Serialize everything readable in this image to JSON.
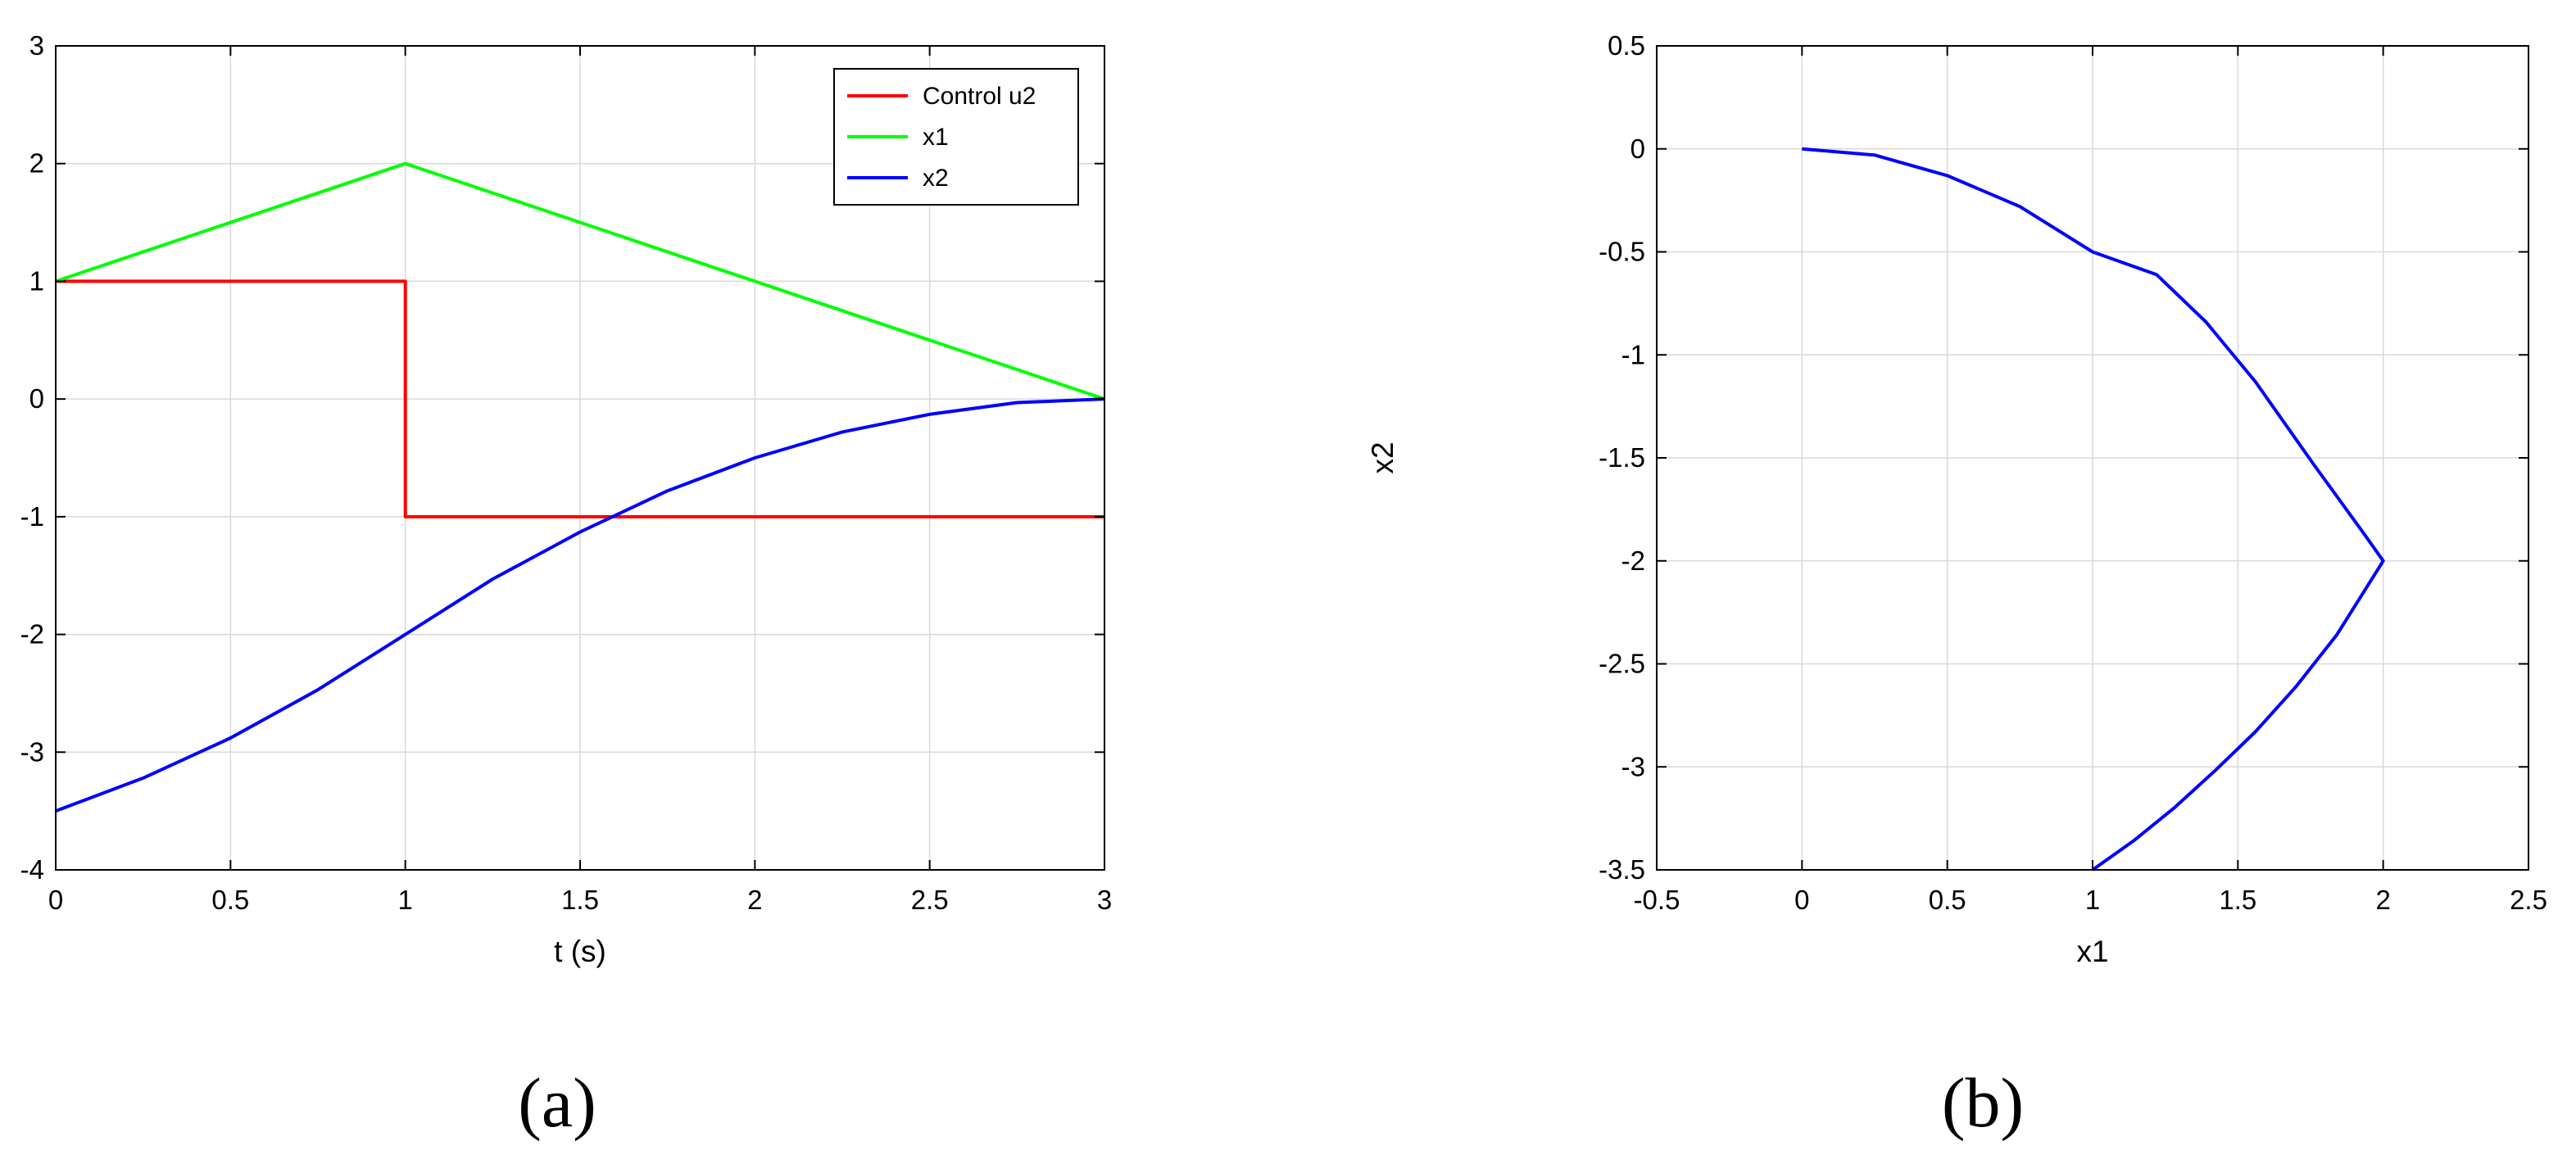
{
  "chart_data": [
    {
      "type": "line",
      "xlabel": "t (s)",
      "ylabel": "",
      "xlim": [
        0,
        3
      ],
      "ylim": [
        -4,
        3
      ],
      "xticks": [
        "0",
        "0.5",
        "1",
        "1.5",
        "2",
        "2.5",
        "3"
      ],
      "yticks": [
        "-4",
        "-3",
        "-2",
        "-1",
        "0",
        "1",
        "2",
        "3"
      ],
      "grid": true,
      "legend_position": "top-right",
      "caption": "(a)",
      "series": [
        {
          "name": "Control u2",
          "color": "#ff0000",
          "points": [
            [
              0,
              1
            ],
            [
              1,
              1
            ],
            [
              1,
              -1
            ],
            [
              3,
              -1
            ]
          ]
        },
        {
          "name": "x1",
          "color": "#00ff00",
          "points": [
            [
              0,
              1
            ],
            [
              1,
              2
            ],
            [
              3,
              0
            ]
          ]
        },
        {
          "name": "x2",
          "color": "#0000ff",
          "points": [
            [
              0,
              -3.5
            ],
            [
              0.25,
              -3.22
            ],
            [
              0.5,
              -2.88
            ],
            [
              0.75,
              -2.47
            ],
            [
              1,
              -2.0
            ],
            [
              1.25,
              -1.53
            ],
            [
              1.5,
              -1.13
            ],
            [
              1.75,
              -0.78
            ],
            [
              2,
              -0.5
            ],
            [
              2.25,
              -0.28
            ],
            [
              2.5,
              -0.13
            ],
            [
              2.75,
              -0.03
            ],
            [
              3,
              0
            ]
          ]
        }
      ]
    },
    {
      "type": "line",
      "xlabel": "x1",
      "ylabel": "x2",
      "xlim": [
        -0.5,
        2.5
      ],
      "ylim": [
        -3.5,
        0.5
      ],
      "xticks": [
        "-0.5",
        "0",
        "0.5",
        "1",
        "1.5",
        "2",
        "2.5"
      ],
      "yticks": [
        "-3.5",
        "-3",
        "-2.5",
        "-2",
        "-1.5",
        "-1",
        "-0.5",
        "0",
        "0.5"
      ],
      "grid": true,
      "caption": "(b)",
      "series": [
        {
          "color": "#0000ff",
          "points": [
            [
              1,
              -3.5
            ],
            [
              1.14,
              -3.36
            ],
            [
              1.28,
              -3.2
            ],
            [
              1.42,
              -3.02
            ],
            [
              1.56,
              -2.83
            ],
            [
              1.7,
              -2.61
            ],
            [
              1.84,
              -2.36
            ],
            [
              2,
              -2.0
            ],
            [
              1.94,
              -1.88
            ],
            [
              1.76,
              -1.53
            ],
            [
              1.56,
              -1.13
            ],
            [
              1.39,
              -0.84
            ],
            [
              1.22,
              -0.61
            ],
            [
              1.0,
              -0.5
            ],
            [
              0.75,
              -0.28
            ],
            [
              0.5,
              -0.13
            ],
            [
              0.25,
              -0.03
            ],
            [
              0,
              0
            ]
          ]
        }
      ]
    }
  ]
}
